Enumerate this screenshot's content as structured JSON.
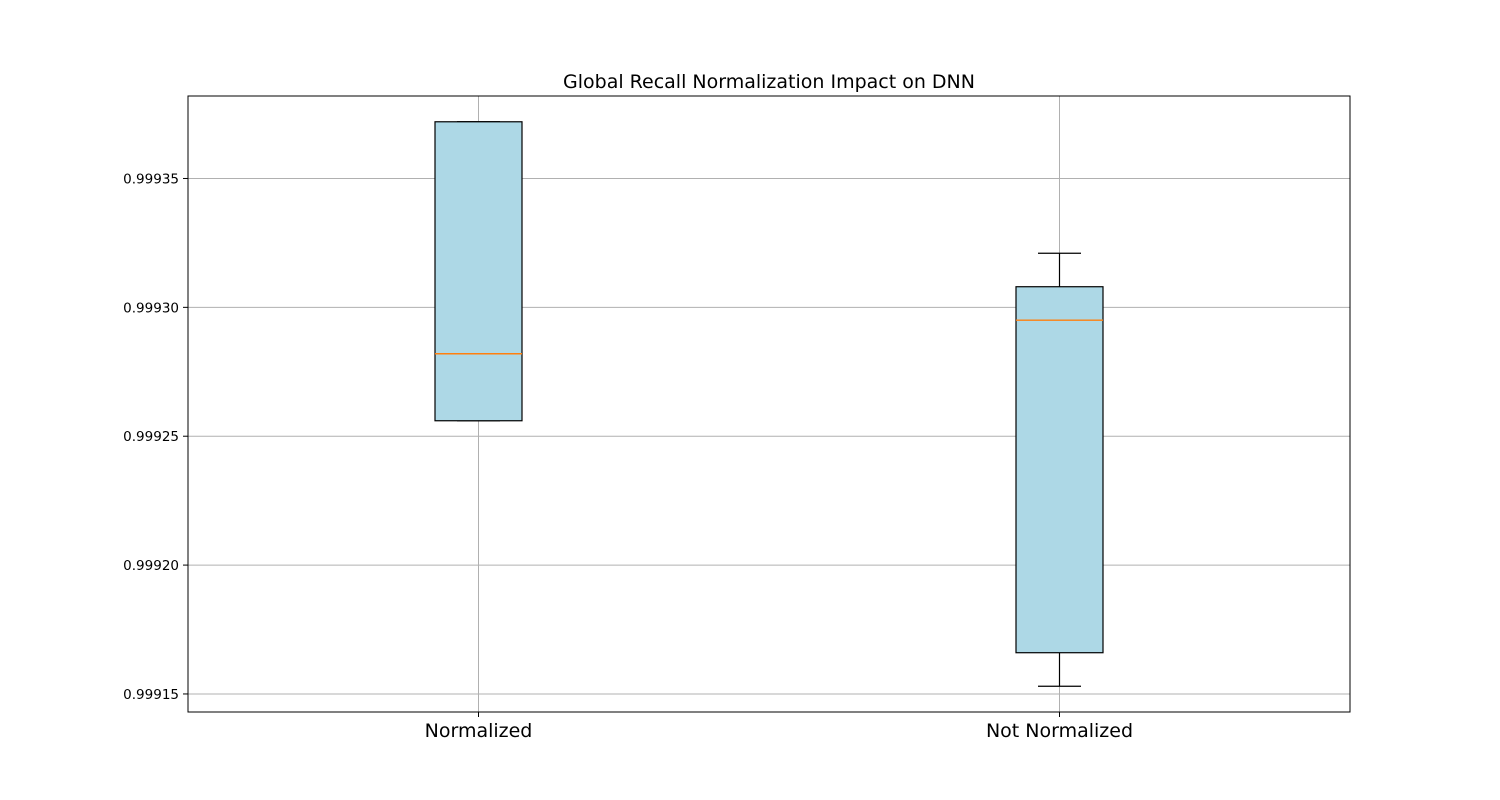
{
  "chart_data": {
    "type": "boxplot",
    "title": "Global Recall Normalization Impact on DNN",
    "xlabel": "",
    "ylabel": "",
    "categories": [
      "Normalized",
      "Not Normalized"
    ],
    "boxes": [
      {
        "category": "Normalized",
        "whisker_low": 0.999256,
        "q1": 0.999256,
        "median": 0.999282,
        "q3": 0.999372,
        "whisker_high": 0.999372
      },
      {
        "category": "Not Normalized",
        "whisker_low": 0.999153,
        "q1": 0.999166,
        "median": 0.999295,
        "q3": 0.999308,
        "whisker_high": 0.999321
      }
    ],
    "yticks": [
      0.99915,
      0.9992,
      0.99925,
      0.9993,
      0.99935
    ],
    "ytick_labels": [
      "0.99915",
      "0.99920",
      "0.99925",
      "0.99930",
      "0.99935"
    ],
    "ylim": [
      0.999143,
      0.999382
    ],
    "grid": true,
    "colors": {
      "box_fill": "#add8e6",
      "box_edge": "#000000",
      "median": "#ff7f0e",
      "grid": "#b0b0b0",
      "axes": "#000000"
    }
  }
}
